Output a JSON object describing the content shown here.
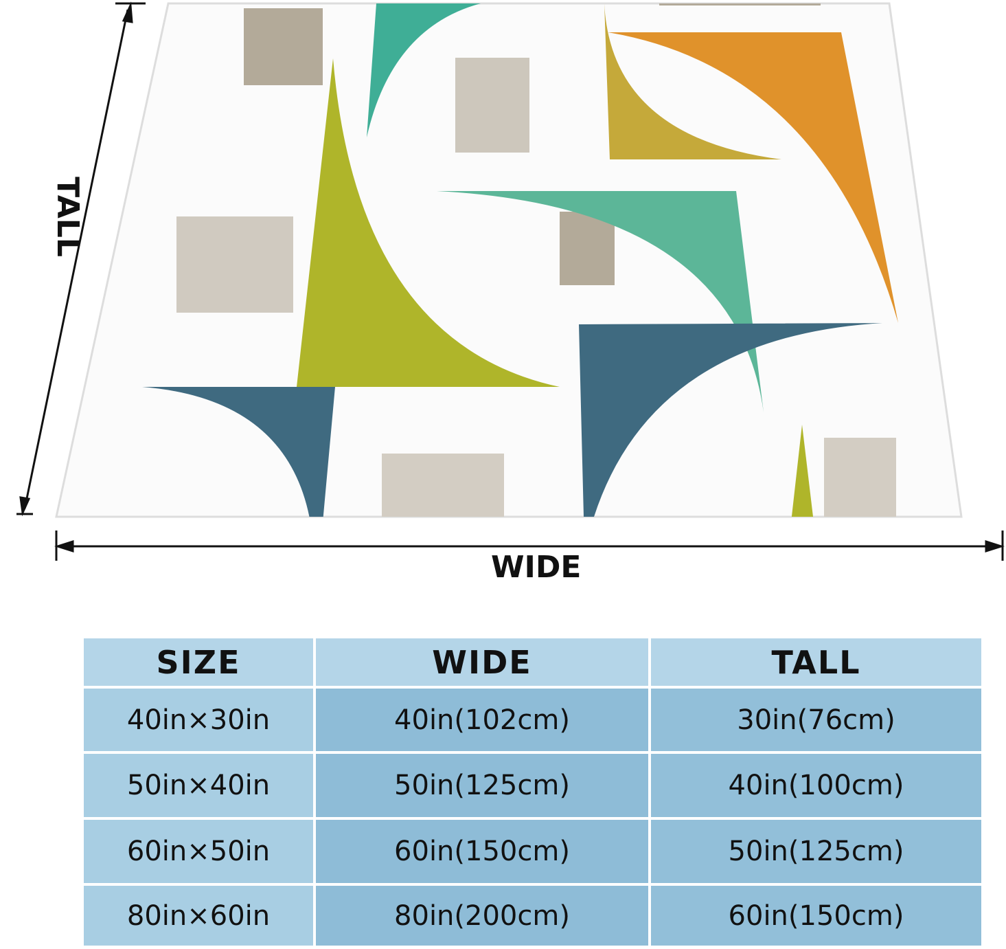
{
  "dimension_labels": {
    "tall": "TALL",
    "wide": "WIDE"
  },
  "table": {
    "header": [
      "SIZE",
      "WIDE",
      "TALL"
    ],
    "rows": [
      [
        "40in×30in",
        "40in(102cm)",
        "30in(76cm)"
      ],
      [
        "50in×40in",
        "50in(125cm)",
        "40in(100cm)"
      ],
      [
        "60in×50in",
        "60in(150cm)",
        "50in(125cm)"
      ],
      [
        "80in×60in",
        "80in(200cm)",
        "60in(150cm)"
      ]
    ]
  }
}
